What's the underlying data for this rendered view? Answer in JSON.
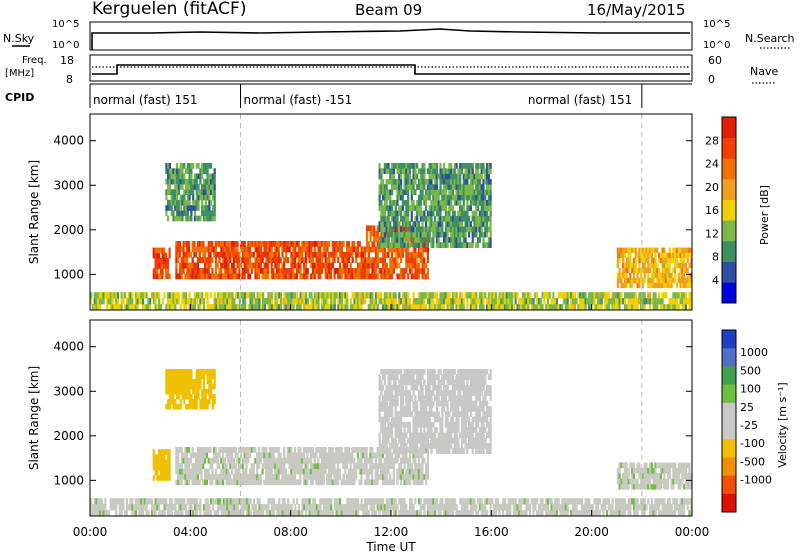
{
  "header": {
    "station": "Kerguelen (fitACF)",
    "beam": "Beam 09",
    "date": "16/May/2015"
  },
  "status_panels": {
    "nsky_label": "N.Sky",
    "nsky_ticks": [
      "10^5",
      "10^0"
    ],
    "nsearch_ticks": [
      "10^5",
      "10^0"
    ],
    "nsearch_label": "N.Search",
    "freq_label_line1": "Freq.",
    "freq_label_line2": "[MHz]",
    "freq_ticks": [
      "18",
      "8"
    ],
    "nave_ticks": [
      "60",
      "0"
    ],
    "nave_label": "Nave",
    "cpid_label": "CPID",
    "cpid_segments": [
      {
        "label": "normal (fast) 151",
        "start_hour": 0,
        "end_hour": 6
      },
      {
        "label": "normal (fast) -151",
        "start_hour": 6,
        "end_hour": 22
      },
      {
        "label": "normal (fast) 151",
        "start_hour": 22,
        "end_hour": 24
      }
    ]
  },
  "colors": {
    "power_scale": [
      "#0000dd",
      "#2f4fa0",
      "#3f8f62",
      "#7ab84a",
      "#f0d000",
      "#f0a020",
      "#f07000",
      "#f04000",
      "#e02000"
    ],
    "velocity_scale": [
      "#2040c0",
      "#5070c8",
      "#40a050",
      "#70c040",
      "#c8c8c8",
      "#c8c8c8",
      "#f0c000",
      "#f09000",
      "#f05000",
      "#e01000"
    ],
    "gray_velocity": "#c9c9c2"
  },
  "chart_data": [
    {
      "type": "heatmap",
      "panel": "power",
      "ylabel": "Slant Range [km]",
      "xlabel": "",
      "ylim": [
        200,
        4600
      ],
      "xlim_hours": [
        0,
        24
      ],
      "yticks": [
        1000,
        2000,
        3000,
        4000
      ],
      "colorbar_label": "Power [dB]",
      "colorbar_ticks": [
        4,
        8,
        12,
        16,
        20,
        24,
        28
      ],
      "colorbar_range": [
        0,
        32
      ],
      "regions": [
        {
          "t0": 0.0,
          "t1": 24.0,
          "r0": 200,
          "r1": 600,
          "value": 14
        },
        {
          "t0": 2.5,
          "t1": 3.2,
          "r0": 900,
          "r1": 1600,
          "value": 26
        },
        {
          "t0": 3.4,
          "t1": 11.0,
          "r0": 900,
          "r1": 1750,
          "value": 26
        },
        {
          "t0": 11.0,
          "t1": 13.5,
          "r0": 900,
          "r1": 2100,
          "value": 25
        },
        {
          "t0": 3.0,
          "t1": 5.0,
          "r0": 2200,
          "r1": 3500,
          "value": 10
        },
        {
          "t0": 11.5,
          "t1": 16.0,
          "r0": 1600,
          "r1": 3500,
          "value": 10
        },
        {
          "t0": 21.0,
          "t1": 24.0,
          "r0": 700,
          "r1": 1600,
          "value": 18
        }
      ]
    },
    {
      "type": "heatmap",
      "panel": "velocity",
      "ylabel": "Slant Range [km]",
      "xlabel": "Time UT",
      "ylim": [
        200,
        4600
      ],
      "xlim_hours": [
        0,
        24
      ],
      "yticks": [
        1000,
        2000,
        3000,
        4000
      ],
      "xticks": [
        "00:00",
        "04:00",
        "08:00",
        "12:00",
        "16:00",
        "20:00",
        "00:00"
      ],
      "colorbar_label": "Velocity [m s⁻¹]",
      "colorbar_ticks": [
        1000,
        500,
        100,
        25,
        -25,
        -100,
        -500,
        -1000
      ],
      "regions": [
        {
          "t0": 0.0,
          "t1": 24.0,
          "r0": 200,
          "r1": 600,
          "value": 0
        },
        {
          "t0": 3.4,
          "t1": 13.5,
          "r0": 900,
          "r1": 1750,
          "value": 0
        },
        {
          "t0": 2.5,
          "t1": 3.2,
          "r0": 1000,
          "r1": 1700,
          "value": -200
        },
        {
          "t0": 3.0,
          "t1": 5.0,
          "r0": 2600,
          "r1": 3500,
          "value": -300
        },
        {
          "t0": 11.5,
          "t1": 16.0,
          "r0": 1600,
          "r1": 3500,
          "value": -50
        },
        {
          "t0": 21.0,
          "t1": 24.0,
          "r0": 800,
          "r1": 1400,
          "value": 0
        }
      ]
    }
  ]
}
